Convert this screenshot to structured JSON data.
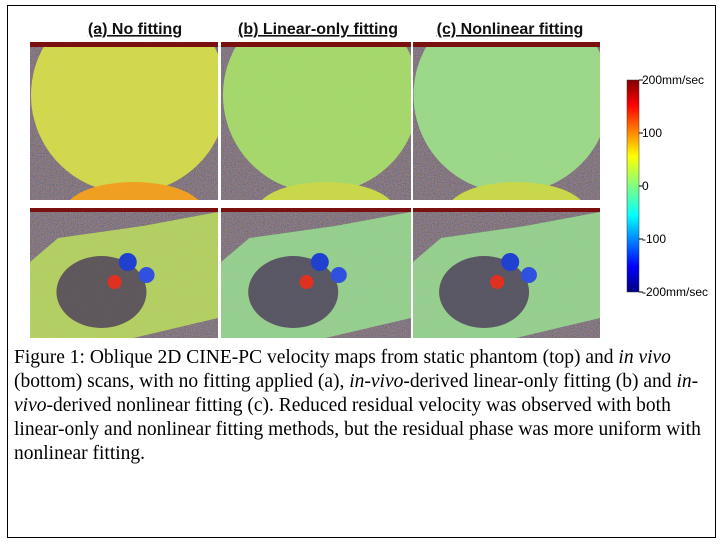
{
  "headers": [
    "(a) No fitting",
    "(b) Linear-only fitting",
    "(c) Nonlinear fitting"
  ],
  "colorbar": {
    "lim": [
      -200,
      200
    ],
    "ticks": [
      {
        "value": 200,
        "label": "200mm/sec"
      },
      100,
      0,
      -100,
      {
        "value": -200,
        "label": "-200mm/sec"
      }
    ]
  },
  "caption": [
    {
      "text": "Figure 1: Oblique 2D CINE-PC velocity maps from static phantom (top) and ",
      "italic": false
    },
    {
      "text": "in vivo",
      "italic": true
    },
    {
      "text": " (bottom) scans, with no fitting applied (a), ",
      "italic": false
    },
    {
      "text": "in-vivo",
      "italic": true
    },
    {
      "text": "-derived linear-only fitting (b) and ",
      "italic": false
    },
    {
      "text": "in-vivo",
      "italic": true
    },
    {
      "text": "-derived nonlinear fitting (c). Reduced residual velocity was observed with both linear-only and nonlinear fitting methods, but the residual phase was more uniform with nonlinear fitting.",
      "italic": false
    }
  ]
}
